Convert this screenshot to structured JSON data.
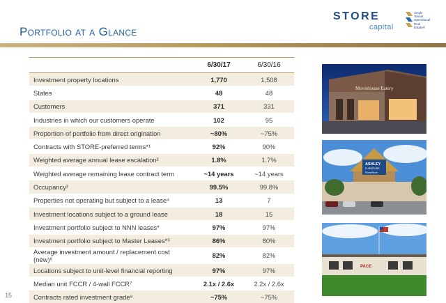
{
  "header": {
    "title": "Portfolio at a Glance"
  },
  "logo": {
    "wordmark": "STORE",
    "subtext": "capital",
    "tagline": [
      "Single",
      "Tenant",
      "Operational",
      "Real",
      "Estate®"
    ]
  },
  "table": {
    "columns": [
      "",
      "6/30/17",
      "6/30/16"
    ],
    "rows": [
      {
        "label": "Investment property locations",
        "cur": "1,770",
        "prev": "1,508"
      },
      {
        "label": "States",
        "cur": "48",
        "prev": "48"
      },
      {
        "label": "Customers",
        "cur": "371",
        "prev": "331"
      },
      {
        "label": "Industries in which our customers operate",
        "cur": "102",
        "prev": "95"
      },
      {
        "label": "Proportion of portfolio from direct origination",
        "cur": "~80%",
        "prev": "~75%"
      },
      {
        "label": "Contracts with STORE-preferred terms*¹",
        "cur": "92%",
        "prev": "90%"
      },
      {
        "label": "Weighted average annual lease escalation²",
        "cur": "1.8%",
        "prev": "1.7%"
      },
      {
        "label": "Weighted average remaining lease contract term",
        "cur": "~14 years",
        "prev": "~14 years"
      },
      {
        "label": "Occupancy³",
        "cur": "99.5%",
        "prev": "99.8%"
      },
      {
        "label": "Properties not operating but subject to a lease⁴",
        "cur": "13",
        "prev": "7"
      },
      {
        "label": "Investment locations subject to a ground lease",
        "cur": "18",
        "prev": "15"
      },
      {
        "label": "Investment portfolio subject to NNN leases*",
        "cur": "97%",
        "prev": "97%"
      },
      {
        "label": "Investment portfolio subject to Master Leases*⁵",
        "cur": "86%",
        "prev": "80%"
      },
      {
        "label": "Average investment amount / replacement cost (new)⁶",
        "cur": "82%",
        "prev": "82%"
      },
      {
        "label": "Locations subject to unit-level financial reporting",
        "cur": "97%",
        "prev": "97%"
      },
      {
        "label": "Median unit FCCR / 4-wall FCCR⁷",
        "cur": "2.1x / 2.6x",
        "prev": "2.2x / 2.6x"
      },
      {
        "label": "Contracts rated investment grade⁸",
        "cur": "~75%",
        "prev": "~75%"
      }
    ]
  },
  "photos": {
    "photo1_sign": "Moviehouse Eatery",
    "photo2_sign_line1": "ASHLEY",
    "photo2_sign_line2": "FURNITURE",
    "photo2_sign_line3": "HomeStore",
    "photo3_sign": "PACE"
  },
  "page_number": "15",
  "colors": {
    "title": "#1f5f9e",
    "accent_gold": "#b89a5e",
    "row_tint": "#f3ede0",
    "logo_blue": "#1f4f8a"
  }
}
